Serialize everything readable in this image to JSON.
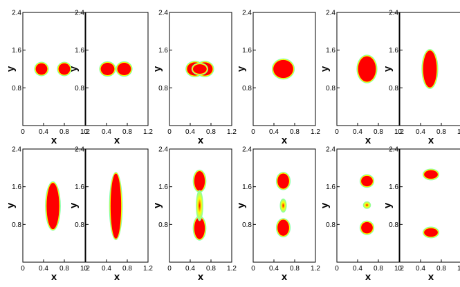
{
  "figure": {
    "xlabel": "x",
    "ylabel": "y",
    "x_ticks": [
      "0",
      "0.4",
      "0.8",
      "1.2"
    ],
    "x_tick_values": [
      0,
      0.4,
      0.8,
      1.2
    ],
    "y_ticks": [
      "0.8",
      "1.6",
      "2.4"
    ],
    "y_tick_values": [
      0.8,
      1.6,
      2.4
    ],
    "xlim": [
      0,
      1.2
    ],
    "ylim": [
      0,
      2.4
    ],
    "colors": {
      "fill": "#ff0000",
      "interface_outer": "#7fffb0",
      "interface_mid": "#ffff00",
      "frame": "#000000"
    },
    "panels": [
      {
        "row": 0,
        "col": 0,
        "drops": [
          {
            "cx": 0.36,
            "cy": 1.2,
            "rx": 0.12,
            "ry": 0.13
          },
          {
            "cx": 0.8,
            "cy": 1.2,
            "rx": 0.12,
            "ry": 0.13
          }
        ]
      },
      {
        "row": 0,
        "col": 1,
        "drops": [
          {
            "cx": 0.42,
            "cy": 1.2,
            "rx": 0.14,
            "ry": 0.14
          },
          {
            "cx": 0.74,
            "cy": 1.2,
            "rx": 0.14,
            "ry": 0.14
          }
        ]
      },
      {
        "row": 0,
        "col": 2,
        "drops": [
          {
            "cx": 0.49,
            "cy": 1.2,
            "rx": 0.16,
            "ry": 0.15
          },
          {
            "cx": 0.68,
            "cy": 1.2,
            "rx": 0.16,
            "ry": 0.15
          },
          {
            "cx": 0.585,
            "cy": 1.2,
            "rx": 0.14,
            "ry": 0.11
          }
        ]
      },
      {
        "row": 0,
        "col": 3,
        "drops": [
          {
            "cx": 0.58,
            "cy": 1.2,
            "rx": 0.2,
            "ry": 0.2
          }
        ]
      },
      {
        "row": 0,
        "col": 4,
        "drops": [
          {
            "cx": 0.58,
            "cy": 1.2,
            "rx": 0.18,
            "ry": 0.28
          }
        ]
      },
      {
        "row": 0,
        "col": 5,
        "drops": [
          {
            "cx": 0.58,
            "cy": 1.2,
            "rx": 0.14,
            "ry": 0.4
          }
        ]
      },
      {
        "row": 1,
        "col": 0,
        "drops": [
          {
            "cx": 0.58,
            "cy": 1.19,
            "rx": 0.13,
            "ry": 0.5
          }
        ]
      },
      {
        "row": 1,
        "col": 1,
        "drops": [
          {
            "cx": 0.58,
            "cy": 1.19,
            "rx": 0.11,
            "ry": 0.7
          }
        ]
      },
      {
        "row": 1,
        "col": 2,
        "drops": [
          {
            "cx": 0.58,
            "cy": 1.72,
            "rx": 0.11,
            "ry": 0.22
          },
          {
            "cx": 0.58,
            "cy": 0.72,
            "rx": 0.11,
            "ry": 0.24
          },
          {
            "cx": 0.58,
            "cy": 1.2,
            "rx": 0.045,
            "ry": 0.3
          }
        ]
      },
      {
        "row": 1,
        "col": 3,
        "drops": [
          {
            "cx": 0.58,
            "cy": 1.72,
            "rx": 0.12,
            "ry": 0.17
          },
          {
            "cx": 0.58,
            "cy": 0.73,
            "rx": 0.12,
            "ry": 0.18
          },
          {
            "cx": 0.58,
            "cy": 1.2,
            "rx": 0.04,
            "ry": 0.12
          }
        ]
      },
      {
        "row": 1,
        "col": 4,
        "drops": [
          {
            "cx": 0.58,
            "cy": 1.72,
            "rx": 0.12,
            "ry": 0.12
          },
          {
            "cx": 0.58,
            "cy": 0.73,
            "rx": 0.12,
            "ry": 0.13
          },
          {
            "cx": 0.58,
            "cy": 1.21,
            "rx": 0.05,
            "ry": 0.05
          }
        ]
      },
      {
        "row": 1,
        "col": 5,
        "drops": [
          {
            "cx": 0.6,
            "cy": 1.86,
            "rx": 0.14,
            "ry": 0.1
          },
          {
            "cx": 0.6,
            "cy": 0.63,
            "rx": 0.14,
            "ry": 0.1
          }
        ]
      }
    ]
  }
}
